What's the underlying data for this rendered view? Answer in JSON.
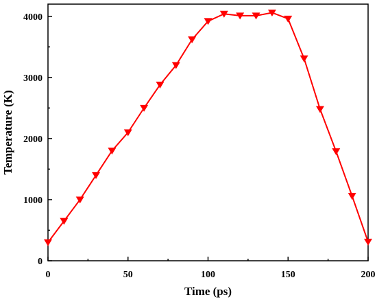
{
  "chart_data": {
    "type": "line",
    "title": "",
    "xlabel": "Time (ps)",
    "ylabel": "Temperature (K)",
    "xlim": [
      0,
      200
    ],
    "ylim": [
      0,
      4200
    ],
    "x_ticks": [
      0,
      50,
      100,
      150,
      200
    ],
    "y_ticks": [
      0,
      1000,
      2000,
      3000,
      4000
    ],
    "grid": false,
    "legend": "none",
    "series": [
      {
        "color": "#ff0000",
        "marker": "down-triangle",
        "x": [
          0,
          10,
          20,
          30,
          40,
          50,
          60,
          70,
          80,
          90,
          100,
          110,
          120,
          130,
          140,
          150,
          160,
          170,
          180,
          190,
          200
        ],
        "y": [
          300,
          650,
          1000,
          1400,
          1800,
          2100,
          2500,
          2880,
          3200,
          3620,
          3920,
          4040,
          4010,
          4010,
          4060,
          3960,
          3310,
          2480,
          1790,
          1060,
          310
        ]
      }
    ]
  }
}
